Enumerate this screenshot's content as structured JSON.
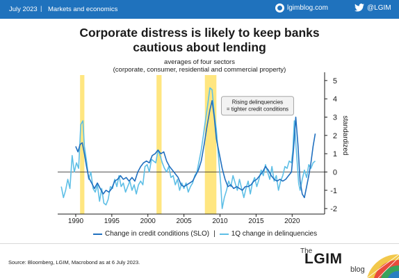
{
  "header": {
    "date": "July 2023",
    "separator": "|",
    "section": "Markets and economics",
    "site": "lgimblog.com",
    "twitter": "@LGIM"
  },
  "colors": {
    "brand_blue": "#1f72bd",
    "slo_line": "#1f6fbf",
    "delinquency_line": "#5ebfe6",
    "recession_band": "#ffe680"
  },
  "chart_data": {
    "type": "line",
    "title": "Corporate distress is likely to keep banks cautious about lending",
    "title_lines": [
      "Corporate distress is likely to keep banks",
      "cautious about lending"
    ],
    "subtitle_lines": [
      "averages of four sectors",
      "(corporate, consumer, residential and commercial property)"
    ],
    "ylabel": "standardized",
    "ylim": [
      -2.3,
      5.3
    ],
    "xlim": [
      1987.5,
      2024.5
    ],
    "y_ticks": [
      5,
      4,
      3,
      2,
      1,
      0,
      -1,
      -2
    ],
    "x_ticks": [
      1990,
      1995,
      2000,
      2005,
      2010,
      2015,
      2020
    ],
    "grid": false,
    "zero_line": true,
    "legend_position": "bottom",
    "recession_bands": [
      [
        1990.6,
        1991.2
      ],
      [
        2001.2,
        2001.9
      ],
      [
        2007.9,
        2009.5
      ]
    ],
    "annotation": {
      "lines": [
        "Rising delinquencies",
        "= tighter credit conditions"
      ],
      "x": 2015.2,
      "y": 3.6
    },
    "series": [
      {
        "name": "Change in credit conditions (SLO)",
        "color": "#1f6fbf",
        "points": [
          [
            1990.0,
            1.4
          ],
          [
            1990.3,
            1.1
          ],
          [
            1990.6,
            1.5
          ],
          [
            1990.9,
            1.6
          ],
          [
            1991.2,
            1.0
          ],
          [
            1991.5,
            0.3
          ],
          [
            1991.8,
            -0.3
          ],
          [
            1992.2,
            -0.6
          ],
          [
            1992.6,
            -0.9
          ],
          [
            1993.0,
            -0.6
          ],
          [
            1993.4,
            -0.9
          ],
          [
            1993.8,
            -1.2
          ],
          [
            1994.2,
            -1.0
          ],
          [
            1994.6,
            -1.1
          ],
          [
            1995.0,
            -0.9
          ],
          [
            1995.4,
            -0.5
          ],
          [
            1995.8,
            -0.4
          ],
          [
            1996.2,
            -0.2
          ],
          [
            1996.6,
            -0.4
          ],
          [
            1997.0,
            -0.3
          ],
          [
            1997.4,
            -0.5
          ],
          [
            1997.8,
            -0.3
          ],
          [
            1998.2,
            -0.5
          ],
          [
            1998.6,
            0.0
          ],
          [
            1999.0,
            0.3
          ],
          [
            1999.4,
            0.5
          ],
          [
            1999.8,
            0.6
          ],
          [
            2000.2,
            0.5
          ],
          [
            2000.6,
            0.9
          ],
          [
            2001.0,
            1.0
          ],
          [
            2001.4,
            1.2
          ],
          [
            2001.8,
            1.0
          ],
          [
            2002.2,
            1.1
          ],
          [
            2002.6,
            0.6
          ],
          [
            2003.0,
            0.3
          ],
          [
            2003.4,
            0.1
          ],
          [
            2003.8,
            -0.1
          ],
          [
            2004.2,
            -0.3
          ],
          [
            2004.6,
            -0.7
          ],
          [
            2005.0,
            -0.8
          ],
          [
            2005.4,
            -0.7
          ],
          [
            2005.8,
            -0.6
          ],
          [
            2006.2,
            -0.5
          ],
          [
            2006.6,
            -0.2
          ],
          [
            2007.0,
            0.1
          ],
          [
            2007.4,
            0.6
          ],
          [
            2007.8,
            1.5
          ],
          [
            2008.2,
            2.5
          ],
          [
            2008.6,
            3.4
          ],
          [
            2008.9,
            3.9
          ],
          [
            2009.2,
            3.0
          ],
          [
            2009.5,
            1.8
          ],
          [
            2009.9,
            1.0
          ],
          [
            2010.3,
            0.2
          ],
          [
            2010.7,
            -0.4
          ],
          [
            2011.1,
            -0.8
          ],
          [
            2011.5,
            -0.7
          ],
          [
            2011.9,
            -0.9
          ],
          [
            2012.3,
            -0.8
          ],
          [
            2012.7,
            -0.9
          ],
          [
            2013.1,
            -1.0
          ],
          [
            2013.5,
            -0.8
          ],
          [
            2013.9,
            -0.8
          ],
          [
            2014.3,
            -0.7
          ],
          [
            2014.7,
            -0.5
          ],
          [
            2015.1,
            -0.4
          ],
          [
            2015.5,
            -0.2
          ],
          [
            2015.9,
            0.0
          ],
          [
            2016.3,
            0.3
          ],
          [
            2016.7,
            0.1
          ],
          [
            2017.1,
            -0.2
          ],
          [
            2017.5,
            -0.4
          ],
          [
            2017.9,
            -0.5
          ],
          [
            2018.3,
            -0.4
          ],
          [
            2018.7,
            -0.5
          ],
          [
            2019.1,
            -0.4
          ],
          [
            2019.5,
            -0.2
          ],
          [
            2019.9,
            0.0
          ],
          [
            2020.2,
            1.3
          ],
          [
            2020.5,
            3.0
          ],
          [
            2020.8,
            1.5
          ],
          [
            2021.1,
            -0.5
          ],
          [
            2021.4,
            -1.2
          ],
          [
            2021.7,
            -1.4
          ],
          [
            2022.0,
            -0.8
          ],
          [
            2022.3,
            -0.2
          ],
          [
            2022.6,
            0.5
          ],
          [
            2022.9,
            1.4
          ],
          [
            2023.2,
            2.1
          ]
        ]
      },
      {
        "name": "1Q change in delinquencies",
        "color": "#5ebfe6",
        "points": [
          [
            1988.0,
            -0.8
          ],
          [
            1988.3,
            -1.4
          ],
          [
            1988.6,
            -1.0
          ],
          [
            1988.9,
            -0.4
          ],
          [
            1989.2,
            -0.9
          ],
          [
            1989.5,
            0.9
          ],
          [
            1989.8,
            0.0
          ],
          [
            1990.1,
            0.5
          ],
          [
            1990.4,
            0.2
          ],
          [
            1990.7,
            2.6
          ],
          [
            1991.0,
            2.8
          ],
          [
            1991.2,
            1.4
          ],
          [
            1991.5,
            0.6
          ],
          [
            1991.8,
            -0.4
          ],
          [
            1992.1,
            0.0
          ],
          [
            1992.4,
            -0.9
          ],
          [
            1992.7,
            -1.1
          ],
          [
            1993.0,
            -0.7
          ],
          [
            1993.3,
            -1.6
          ],
          [
            1993.6,
            -0.9
          ],
          [
            1993.9,
            -1.7
          ],
          [
            1994.2,
            -1.8
          ],
          [
            1994.5,
            -1.5
          ],
          [
            1994.8,
            -0.8
          ],
          [
            1995.1,
            -0.9
          ],
          [
            1995.4,
            -0.4
          ],
          [
            1995.7,
            -0.8
          ],
          [
            1996.0,
            -0.2
          ],
          [
            1996.3,
            -0.8
          ],
          [
            1996.6,
            -0.6
          ],
          [
            1996.9,
            -1.1
          ],
          [
            1997.2,
            -0.8
          ],
          [
            1997.5,
            -0.5
          ],
          [
            1997.8,
            -1.0
          ],
          [
            1998.1,
            -0.7
          ],
          [
            1998.4,
            -1.2
          ],
          [
            1998.7,
            -0.7
          ],
          [
            1999.0,
            -0.5
          ],
          [
            1999.3,
            -0.7
          ],
          [
            1999.6,
            0.3
          ],
          [
            1999.9,
            0.4
          ],
          [
            2000.2,
            0.0
          ],
          [
            2000.5,
            0.7
          ],
          [
            2000.8,
            0.6
          ],
          [
            2001.1,
            0.5
          ],
          [
            2001.4,
            1.2
          ],
          [
            2001.7,
            0.9
          ],
          [
            2002.0,
            0.5
          ],
          [
            2002.3,
            0.2
          ],
          [
            2002.6,
            0.0
          ],
          [
            2002.9,
            0.3
          ],
          [
            2003.2,
            -0.3
          ],
          [
            2003.5,
            -0.2
          ],
          [
            2003.8,
            -0.7
          ],
          [
            2004.1,
            -0.4
          ],
          [
            2004.4,
            -1.0
          ],
          [
            2004.7,
            -0.6
          ],
          [
            2005.0,
            -0.9
          ],
          [
            2005.3,
            -0.6
          ],
          [
            2005.6,
            -1.1
          ],
          [
            2005.9,
            -0.8
          ],
          [
            2006.2,
            -0.6
          ],
          [
            2006.5,
            -0.2
          ],
          [
            2006.8,
            0.0
          ],
          [
            2007.1,
            0.6
          ],
          [
            2007.4,
            1.2
          ],
          [
            2007.7,
            2.0
          ],
          [
            2008.0,
            2.9
          ],
          [
            2008.3,
            3.7
          ],
          [
            2008.6,
            4.6
          ],
          [
            2008.9,
            4.5
          ],
          [
            2009.2,
            3.2
          ],
          [
            2009.5,
            2.3
          ],
          [
            2009.8,
            0.8
          ],
          [
            2010.1,
            -0.7
          ],
          [
            2010.3,
            -2.0
          ],
          [
            2010.6,
            -1.4
          ],
          [
            2010.9,
            -1.0
          ],
          [
            2011.2,
            -0.5
          ],
          [
            2011.5,
            -0.8
          ],
          [
            2011.8,
            -0.2
          ],
          [
            2012.1,
            -0.6
          ],
          [
            2012.4,
            -1.0
          ],
          [
            2012.7,
            -0.4
          ],
          [
            2013.0,
            -0.9
          ],
          [
            2013.3,
            -1.4
          ],
          [
            2013.6,
            -0.9
          ],
          [
            2013.9,
            -0.5
          ],
          [
            2014.2,
            -1.2
          ],
          [
            2014.5,
            -0.6
          ],
          [
            2014.8,
            -0.3
          ],
          [
            2015.1,
            -0.8
          ],
          [
            2015.4,
            -0.4
          ],
          [
            2015.7,
            0.1
          ],
          [
            2016.0,
            -0.2
          ],
          [
            2016.3,
            0.4
          ],
          [
            2016.6,
            0.0
          ],
          [
            2016.9,
            -0.4
          ],
          [
            2017.2,
            0.3
          ],
          [
            2017.5,
            -0.5
          ],
          [
            2017.8,
            -0.2
          ],
          [
            2018.1,
            -1.0
          ],
          [
            2018.4,
            -0.5
          ],
          [
            2018.7,
            -0.2
          ],
          [
            2019.0,
            0.3
          ],
          [
            2019.3,
            0.2
          ],
          [
            2019.6,
            0.6
          ],
          [
            2019.9,
            0.5
          ],
          [
            2020.1,
            1.2
          ],
          [
            2020.3,
            2.8
          ],
          [
            2020.5,
            1.6
          ],
          [
            2020.7,
            0.5
          ],
          [
            2020.9,
            -0.6
          ],
          [
            2021.1,
            -1.0
          ],
          [
            2021.4,
            -0.4
          ],
          [
            2021.7,
            0.1
          ],
          [
            2022.0,
            -0.3
          ],
          [
            2022.3,
            0.4
          ],
          [
            2022.6,
            0.2
          ],
          [
            2022.9,
            0.5
          ],
          [
            2023.2,
            0.6
          ]
        ]
      }
    ]
  },
  "legend": {
    "slo": "Change in credit conditions (SLO)",
    "divider": "|",
    "delinquencies": "1Q change in delinquencies"
  },
  "footer": {
    "source": "Source: Bloomberg, LGIM, Macrobond as at 6 July 2023.",
    "brand_the": "The",
    "brand_name": "LGIM",
    "brand_blog": "blog"
  }
}
